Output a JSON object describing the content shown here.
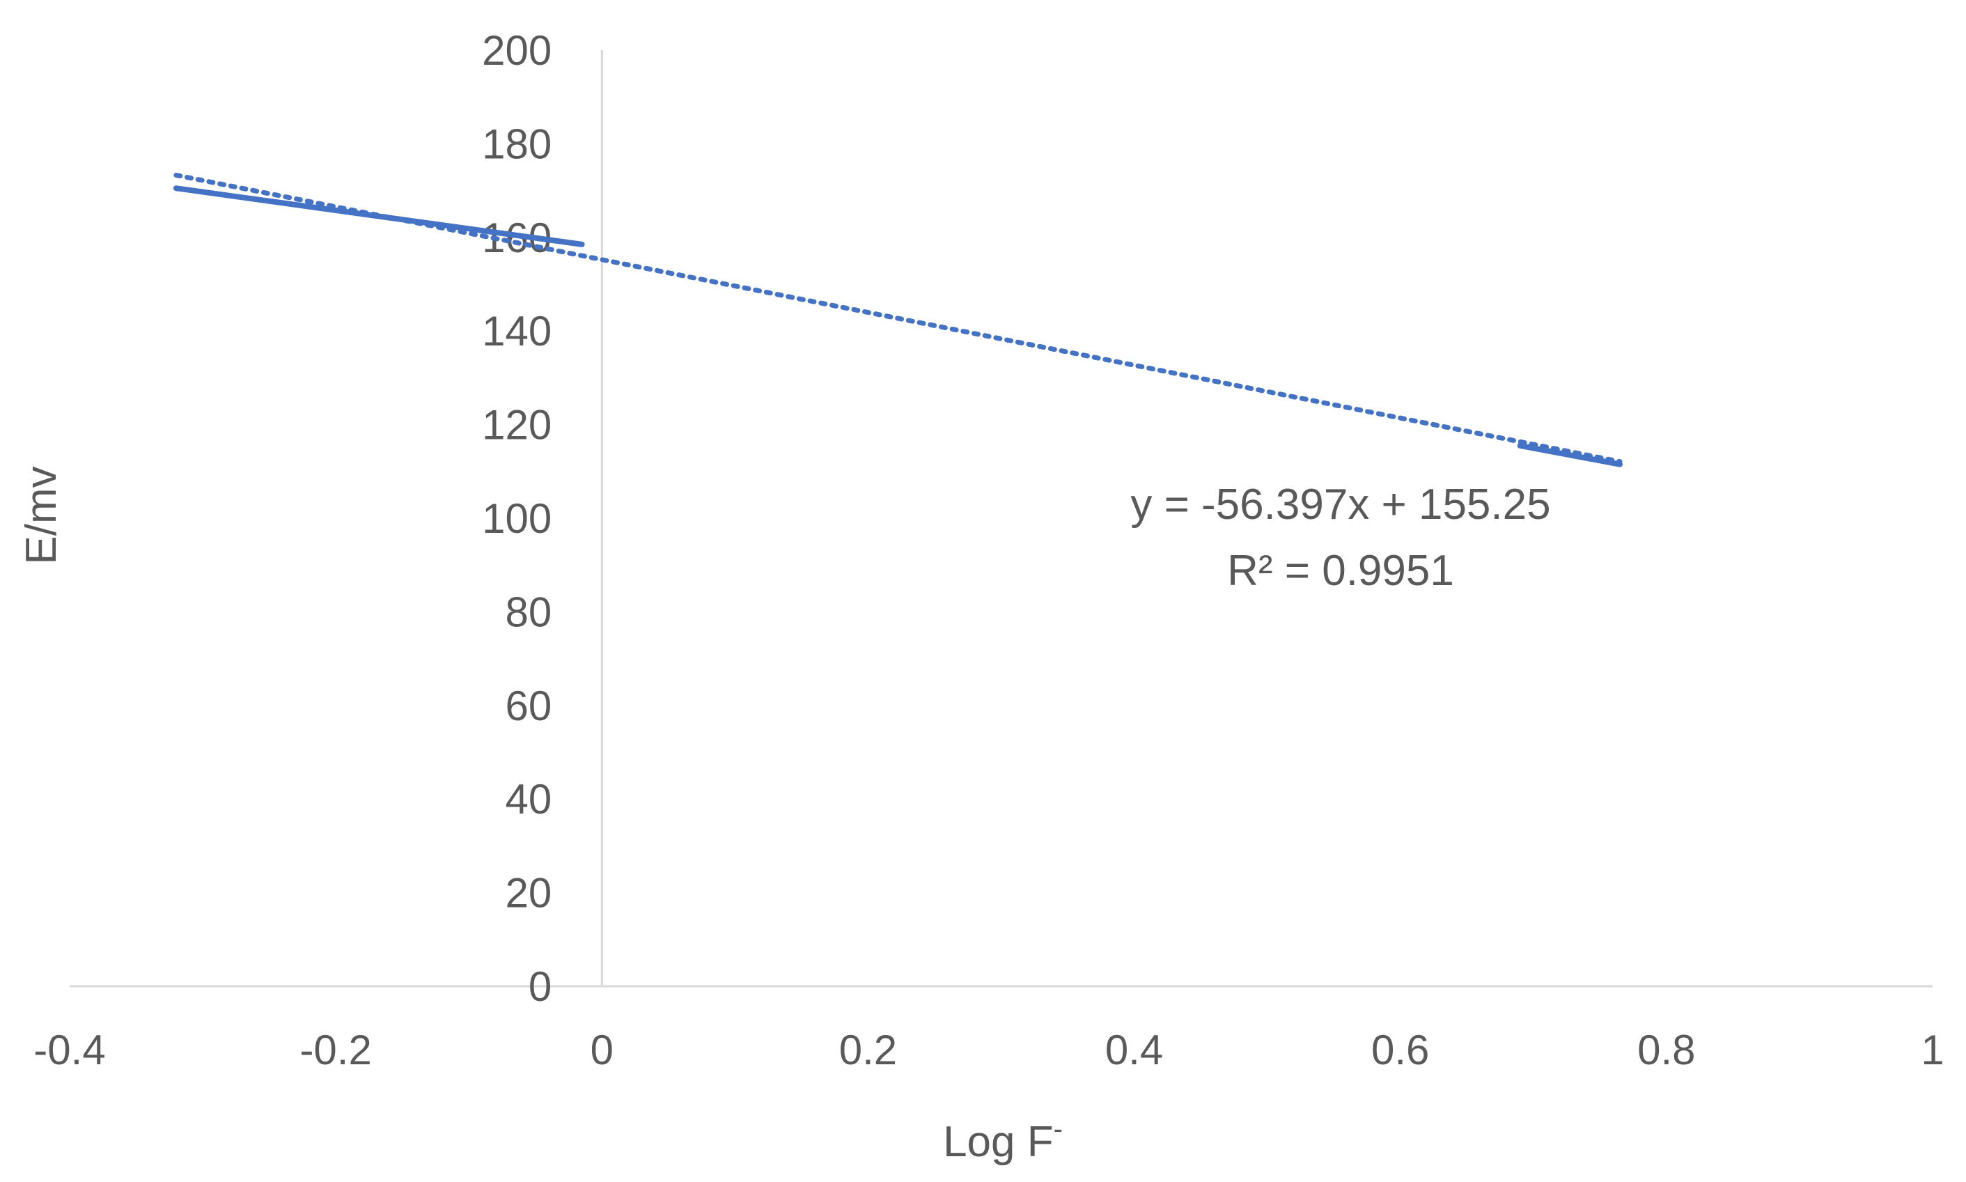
{
  "chart_data": {
    "type": "line",
    "title": "",
    "xlabel": "Log F",
    "xlabel_superscript": "-",
    "ylabel": "E/mv",
    "xlim": [
      -0.4,
      1
    ],
    "ylim": [
      0,
      200
    ],
    "x_ticks": [
      "-0.4",
      "-0.2",
      "0",
      "0.2",
      "0.4",
      "0.6",
      "0.8",
      "1"
    ],
    "y_ticks": [
      "0",
      "20",
      "40",
      "60",
      "80",
      "100",
      "120",
      "140",
      "160",
      "180",
      "200"
    ],
    "grid": false,
    "legend": "none",
    "series": [
      {
        "x": [
          -0.32,
          -0.015,
          0.69,
          0.765
        ],
        "y": [
          170.5,
          158.5,
          115.5,
          111.5
        ],
        "style": "solid",
        "color": "#4472C4"
      }
    ],
    "trendline": {
      "type": "linear",
      "slope": -56.397,
      "intercept": 155.25,
      "x_range": [
        -0.32,
        0.765
      ],
      "style": "dotted",
      "color": "#4472C4",
      "equation_label": "y = -56.397x + 155.25",
      "r2_label": "R² = 0.9951"
    },
    "axis_color": "#d9d9d9"
  }
}
